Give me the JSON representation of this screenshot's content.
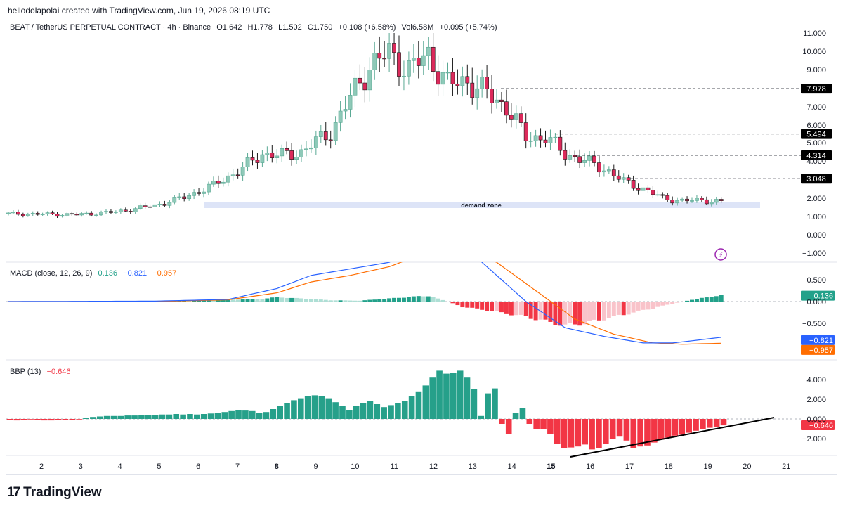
{
  "caption": "hellodolapolai created with TradingView.com, Jun 19, 2026 08:19 UTC",
  "header": {
    "symbol": "BEAT / TetherUS PERPETUAL CONTRACT · 4h · Binance",
    "o": "O1.642",
    "h": "H1.778",
    "l": "L1.502",
    "c": "C1.750",
    "chg": "+0.108 (+6.58%)",
    "vol": "Vol6.58M",
    "volchg": "+0.095 (+5.74%)"
  },
  "macd_legend": {
    "title": "MACD (close, 12, 26, 9)",
    "hist": "0.136",
    "macd": "−0.821",
    "signal": "−0.957"
  },
  "bbp_legend": {
    "title": "BBP (13)",
    "value": "−0.646"
  },
  "brand": {
    "logo": "17",
    "name": "TradingView"
  },
  "colors": {
    "up": "#8ec9b8",
    "down": "#dc2a5b",
    "macd_pos": "#22a18a",
    "macd_pos_light": "#aedfd5",
    "macd_neg": "#f23645",
    "macd_neg_light": "#f9c3ca",
    "macd_line": "#2962ff",
    "signal_line": "#ff6d00",
    "bbp_pos": "#26a08a",
    "bbp_neg": "#f23645"
  },
  "chart_data": [
    {
      "type": "candlestick",
      "title": "BEAT / TetherUS PERPETUAL CONTRACT · 4h · Binance",
      "x_ticks": [
        "2",
        "3",
        "4",
        "5",
        "6",
        "7",
        "8",
        "9",
        "10",
        "11",
        "12",
        "13",
        "14",
        "15",
        "16",
        "17",
        "18",
        "19",
        "20",
        "21"
      ],
      "bold_ticks": [
        "8",
        "15"
      ],
      "y_ticks": [
        "11.000",
        "10.000",
        "9.000",
        "7.000",
        "6.000",
        "5.000",
        "4.000",
        "2.000",
        "1.000",
        "0.000",
        "−1.000"
      ],
      "price_tags": [
        "7.978",
        "5.494",
        "4.314",
        "3.048"
      ],
      "annotation": "demand zone",
      "note": "price scale is non-linear (spacing between ticks read from the image)"
    },
    {
      "type": "bar",
      "title": "MACD (close, 12, 26, 9)",
      "y_ticks": [
        "0.500",
        "0.000",
        "−0.500"
      ],
      "last_values": {
        "histogram": 0.136,
        "macd": -0.821,
        "signal": -0.957
      },
      "value_tags": [
        "0.136",
        "−0.821",
        "−0.957"
      ]
    },
    {
      "type": "bar",
      "title": "BBP (13)",
      "y_ticks": [
        "4.000",
        "2.000",
        "0.000",
        "−2.000"
      ],
      "last_value": -0.646,
      "value_tags": [
        "−0.646"
      ],
      "values": [
        -0.1,
        -0.15,
        -0.1,
        -0.05,
        -0.1,
        -0.15,
        -0.15,
        -0.1,
        -0.1,
        -0.1,
        -0.05,
        0.1,
        0.2,
        0.25,
        0.3,
        0.3,
        0.3,
        0.35,
        0.35,
        0.4,
        0.4,
        0.4,
        0.45,
        0.45,
        0.5,
        0.45,
        0.5,
        0.45,
        0.5,
        0.55,
        0.6,
        0.7,
        0.8,
        0.9,
        0.85,
        0.8,
        0.6,
        0.7,
        1.0,
        1.3,
        1.6,
        1.9,
        2.1,
        2.3,
        2.4,
        2.3,
        2.1,
        1.7,
        1.3,
        0.9,
        1.3,
        1.6,
        1.8,
        1.5,
        1.2,
        1.4,
        1.6,
        1.8,
        2.3,
        2.8,
        3.4,
        4.2,
        4.9,
        4.6,
        4.7,
        4.9,
        4.2,
        3.0,
        0.3,
        2.6,
        3.1,
        -0.5,
        -1.5,
        0.6,
        1.1,
        -0.5,
        -1.0,
        -1.0,
        -1.5,
        -2.5,
        -3.0,
        -2.9,
        -2.8,
        -2.6,
        -3.1,
        -3.0,
        -2.5,
        -2.0,
        -1.8,
        -2.2,
        -3.0,
        -2.8,
        -2.7,
        -2.4,
        -2.1,
        -1.9,
        -1.7,
        -1.6,
        -1.4,
        -1.2,
        -1.0,
        -0.9,
        -0.8,
        -0.65
      ]
    }
  ]
}
